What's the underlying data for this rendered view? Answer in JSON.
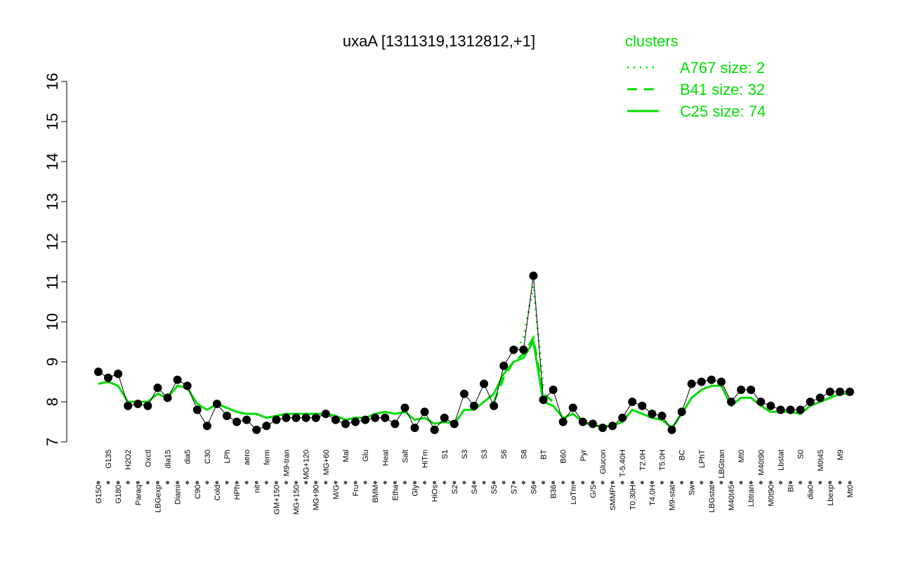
{
  "chart_data": {
    "type": "line",
    "title": "uxaA [1311319,1312812,+1]",
    "legend_title": "clusters",
    "legend_color": "#00dd00",
    "ylim": [
      7,
      16
    ],
    "yticks": [
      7,
      8,
      9,
      10,
      11,
      12,
      13,
      14,
      15,
      16
    ],
    "categories": [
      "G150",
      "G135",
      "G180",
      "H2O2",
      "Paraq",
      "Oxctl",
      "LBGexp",
      "dia15",
      "Diami",
      "dia5",
      "C90",
      "C30",
      "Cold",
      "LPh",
      "HPh",
      "aero",
      "nit",
      "ferm",
      "GM+150",
      "M9-tran",
      "MG+150",
      "MG+120",
      "MG+90",
      "MG+60",
      "M/G",
      "Mal",
      "Fru",
      "Glu",
      "BMM",
      "Heat",
      "Etha",
      "Salt",
      "Gly",
      "HiTm",
      "HiOs",
      "S1",
      "S2",
      "S3",
      "S4",
      "S3",
      "S5",
      "S6",
      "S7",
      "S8",
      "S6",
      "BT",
      "B36",
      "B60",
      "LoTm",
      "Pyr",
      "G/S",
      "Glucon",
      "SMMPr",
      "T-5.40H",
      "T0.30H",
      "T2.0H",
      "T4.0H",
      "T5.0H",
      "M9-stat",
      "BC",
      "Sw",
      "LPhT",
      "LBGstat",
      "LBGtran",
      "M40t45",
      "Mt0",
      "Lbtran",
      "M40t90",
      "M0t90",
      "Lbstat",
      "BI",
      "S0",
      "dia0",
      "M0t45",
      "Lbexp",
      "M9",
      "Mt0"
    ],
    "points": {
      "color": "#000000",
      "values": [
        8.75,
        8.6,
        8.7,
        7.9,
        7.95,
        7.9,
        8.35,
        8.1,
        8.55,
        8.4,
        7.8,
        7.4,
        7.95,
        7.65,
        7.5,
        7.55,
        7.3,
        7.4,
        7.55,
        7.6,
        7.6,
        7.6,
        7.6,
        7.7,
        7.55,
        7.45,
        7.5,
        7.55,
        7.6,
        7.6,
        7.45,
        7.85,
        7.35,
        7.75,
        7.3,
        7.6,
        7.45,
        8.2,
        7.9,
        8.45,
        7.9,
        8.9,
        9.3,
        9.3,
        11.15,
        8.05,
        8.3,
        7.5,
        7.85,
        7.5,
        7.45,
        7.35,
        7.4,
        7.6,
        8.0,
        7.9,
        7.7,
        7.65,
        7.3,
        7.75,
        8.45,
        8.5,
        8.55,
        8.5,
        8.0,
        8.3,
        8.3,
        8.0,
        7.9,
        7.8,
        7.8,
        7.8,
        8.0,
        8.1,
        8.25,
        8.25,
        8.25
      ]
    },
    "series": [
      {
        "name": "A767 size: 2",
        "color": "#00dd00",
        "dash": "dotted",
        "values": [
          null,
          null,
          null,
          null,
          null,
          null,
          null,
          null,
          null,
          null,
          null,
          null,
          null,
          null,
          null,
          null,
          null,
          null,
          null,
          null,
          null,
          null,
          null,
          null,
          null,
          null,
          null,
          null,
          null,
          null,
          null,
          null,
          null,
          null,
          null,
          null,
          null,
          null,
          null,
          null,
          null,
          null,
          9.2,
          9.6,
          10.9,
          8.4,
          null,
          null,
          null,
          null,
          null,
          null,
          null,
          null,
          null,
          null,
          null,
          null,
          null,
          null,
          null,
          null,
          null,
          null,
          null,
          null,
          null,
          null,
          null,
          null,
          null,
          null,
          null,
          null,
          null,
          null,
          null
        ]
      },
      {
        "name": "B41 size: 32",
        "color": "#00dd00",
        "dash": "dashed",
        "values": [
          null,
          null,
          null,
          null,
          null,
          null,
          null,
          null,
          null,
          null,
          null,
          null,
          null,
          null,
          null,
          null,
          null,
          null,
          null,
          null,
          null,
          null,
          null,
          null,
          null,
          null,
          null,
          null,
          null,
          null,
          null,
          null,
          null,
          null,
          null,
          null,
          null,
          null,
          null,
          null,
          8.0,
          8.6,
          9.0,
          9.2,
          9.6,
          8.2,
          8.0,
          null,
          null,
          null,
          null,
          null,
          null,
          null,
          null,
          null,
          null,
          null,
          null,
          null,
          null,
          null,
          null,
          null,
          null,
          null,
          null,
          null,
          null,
          null,
          null,
          null,
          null,
          null,
          null,
          null,
          null
        ]
      },
      {
        "name": "C25 size: 74",
        "color": "#00dd00",
        "dash": "solid",
        "values": [
          8.45,
          8.5,
          8.4,
          8.0,
          8.0,
          8.0,
          8.2,
          8.1,
          8.4,
          8.35,
          7.95,
          7.8,
          7.95,
          7.85,
          7.75,
          7.7,
          7.7,
          7.6,
          7.65,
          7.7,
          7.7,
          7.7,
          7.7,
          7.7,
          7.65,
          7.55,
          7.6,
          7.6,
          7.7,
          7.75,
          7.7,
          7.75,
          7.55,
          7.6,
          7.45,
          7.5,
          7.45,
          7.8,
          7.8,
          8.0,
          8.2,
          8.7,
          9.0,
          9.1,
          9.5,
          8.0,
          7.9,
          7.6,
          7.7,
          7.5,
          7.4,
          7.4,
          7.4,
          7.5,
          7.8,
          7.7,
          7.6,
          7.55,
          7.35,
          7.7,
          8.1,
          8.3,
          8.4,
          8.4,
          7.9,
          8.1,
          8.1,
          7.9,
          7.75,
          7.75,
          7.75,
          7.7,
          7.9,
          8.0,
          8.1,
          8.2,
          8.2
        ]
      }
    ]
  }
}
